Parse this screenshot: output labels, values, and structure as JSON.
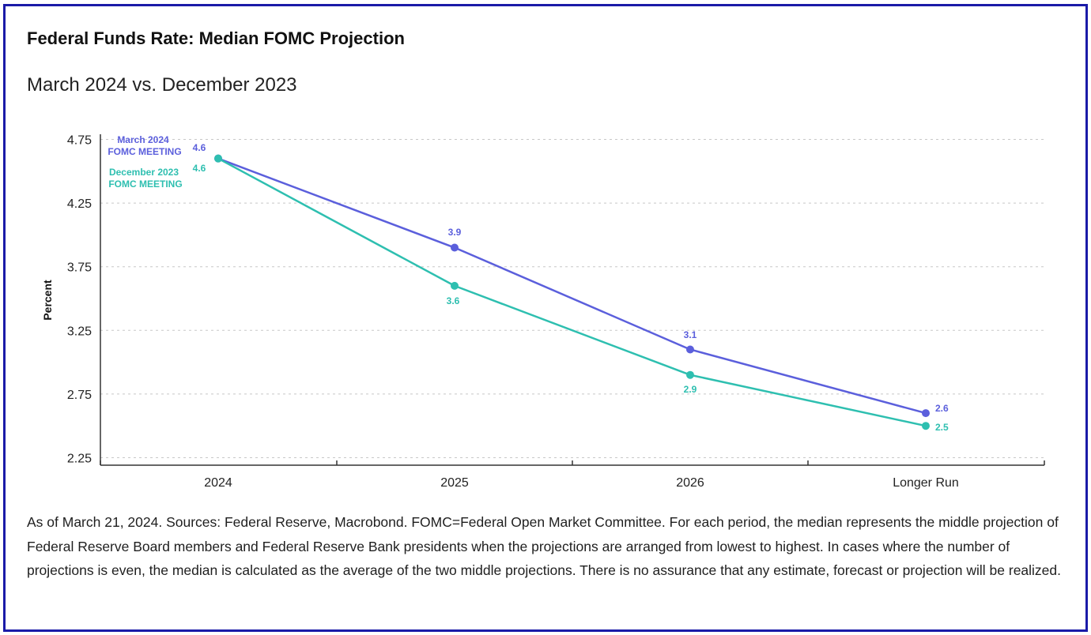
{
  "header": {
    "title": "Federal Funds Rate: Median FOMC Projection",
    "subtitle": "March 2024 vs. December 2023"
  },
  "footnote": "As of March 21, 2024. Sources: Federal Reserve, Macrobond. FOMC=Federal Open Market Committee. For each period, the median represents the middle projection of Federal Reserve Board members and Federal Reserve Bank presidents when the projections are arranged from lowest to highest. In cases where the number of projections is even, the median is calculated as the average of the two middle projections. There is no assurance that any estimate, forecast or projection will be realized.",
  "chart_data": {
    "type": "line",
    "ylabel": "Percent",
    "xlabel": "",
    "categories": [
      "2024",
      "2025",
      "2026",
      "Longer Run"
    ],
    "ylim": [
      2.25,
      4.75
    ],
    "yticks": [
      2.25,
      2.75,
      3.25,
      3.75,
      4.25,
      4.75
    ],
    "ytick_labels": [
      "2.25",
      "2.75",
      "3.25",
      "3.75",
      "4.25",
      "4.75"
    ],
    "grid": "horizontal-dotted",
    "series": [
      {
        "id": "march",
        "name_line1": "March 2024",
        "name_line2": "FOMC MEETING",
        "color": "#5b5fdc",
        "values": [
          4.6,
          3.9,
          3.1,
          2.6
        ],
        "labels": [
          "4.6",
          "3.9",
          "3.1",
          "2.6"
        ]
      },
      {
        "id": "december",
        "name_line1": "December 2023",
        "name_line2": "FOMC MEETING",
        "color": "#2ebfb0",
        "values": [
          4.6,
          3.6,
          2.9,
          2.5
        ],
        "labels": [
          "4.6",
          "3.6",
          "2.9",
          "2.5"
        ]
      }
    ]
  },
  "colors": {
    "frame_border": "#1a1aa8",
    "axis": "#333333",
    "grid": "#c8c8c8"
  }
}
